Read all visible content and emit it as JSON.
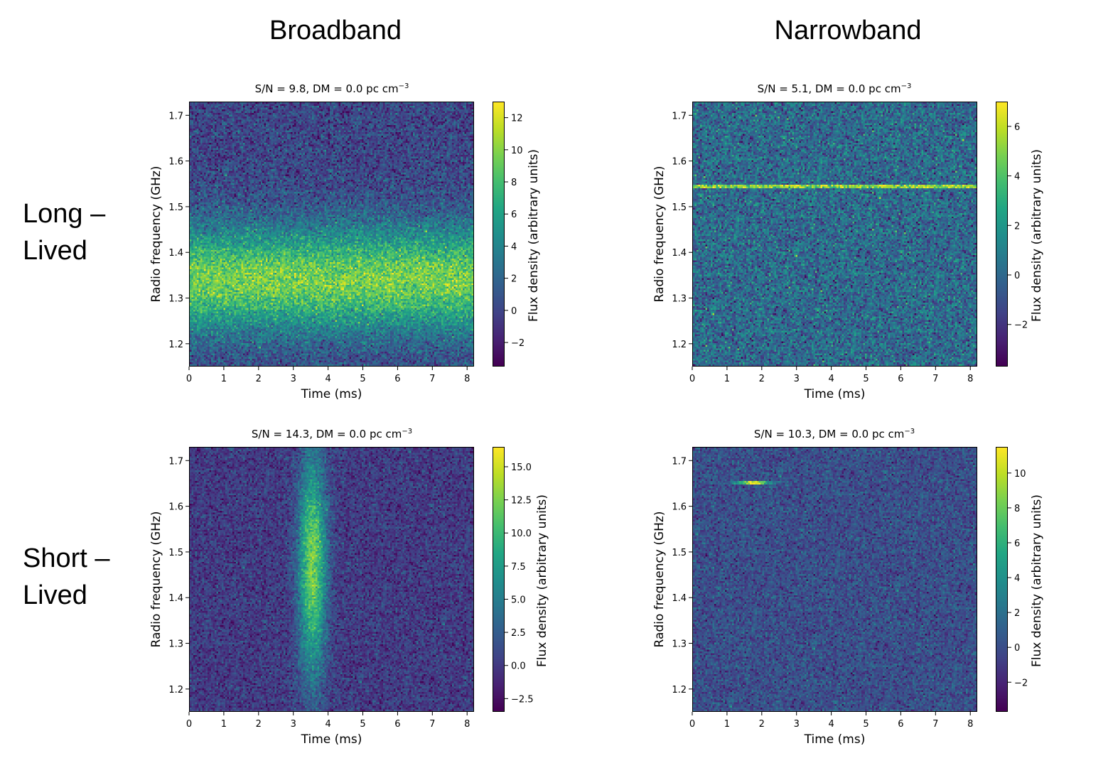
{
  "column_headers": [
    "Broadband",
    "Narrowband"
  ],
  "row_labels": [
    {
      "line1": "Long –",
      "line2": "Lived"
    },
    {
      "line1": "Short –",
      "line2": "Lived"
    }
  ],
  "chart_data": [
    {
      "type": "heatmap",
      "id": "broadband-long",
      "title": "S/N = 9.8, DM = 0.0 pc cm",
      "title_sup": "−3",
      "xlabel": "Time (ms)",
      "ylabel": "Radio frequency (GHz)",
      "colorbar_label": "Flux density (arbitrary units)",
      "xlim": [
        0,
        8.2
      ],
      "ylim": [
        1.15,
        1.73
      ],
      "xticks": [
        0,
        1,
        2,
        3,
        4,
        5,
        6,
        7,
        8
      ],
      "yticks": [
        1.2,
        1.3,
        1.4,
        1.5,
        1.6,
        1.7
      ],
      "yticklabels": [
        "1.2",
        "1.3",
        "1.4",
        "1.5",
        "1.6",
        "1.7"
      ],
      "clim": [
        -3.5,
        13
      ],
      "cticks": [
        -2,
        0,
        2,
        4,
        6,
        8,
        10,
        12
      ],
      "cticklabels": [
        "−2",
        "0",
        "2",
        "4",
        "6",
        "8",
        "10",
        "12"
      ],
      "signal": {
        "shape": "band",
        "center_freq_ghz": 1.34,
        "freq_width_ghz": 0.08,
        "peak": 9.5,
        "noise": 1.6
      },
      "colormap": "viridis"
    },
    {
      "type": "heatmap",
      "id": "narrowband-long",
      "title": "S/N = 5.1, DM = 0.0 pc cm",
      "title_sup": "−3",
      "xlabel": "Time (ms)",
      "ylabel": "Radio frequency (GHz)",
      "colorbar_label": "Flux density (arbitrary units)",
      "xlim": [
        0,
        8.2
      ],
      "ylim": [
        1.15,
        1.73
      ],
      "xticks": [
        0,
        1,
        2,
        3,
        4,
        5,
        6,
        7,
        8
      ],
      "yticks": [
        1.2,
        1.3,
        1.4,
        1.5,
        1.6,
        1.7
      ],
      "yticklabels": [
        "1.2",
        "1.3",
        "1.4",
        "1.5",
        "1.6",
        "1.7"
      ],
      "clim": [
        -3.7,
        7
      ],
      "cticks": [
        -2,
        0,
        2,
        4,
        6
      ],
      "cticklabels": [
        "−2",
        "0",
        "2",
        "4",
        "6"
      ],
      "signal": {
        "shape": "line",
        "center_freq_ghz": 1.545,
        "freq_width_ghz": 0.004,
        "peak": 5.2,
        "noise": 1.3
      },
      "colormap": "viridis"
    },
    {
      "type": "heatmap",
      "id": "broadband-short",
      "title": "S/N = 14.3, DM = 0.0 pc cm",
      "title_sup": "−3",
      "xlabel": "Time (ms)",
      "ylabel": "Radio frequency (GHz)",
      "colorbar_label": "Flux density (arbitrary units)",
      "xlim": [
        0,
        8.2
      ],
      "ylim": [
        1.15,
        1.73
      ],
      "xticks": [
        0,
        1,
        2,
        3,
        4,
        5,
        6,
        7,
        8
      ],
      "yticks": [
        1.2,
        1.3,
        1.4,
        1.5,
        1.6,
        1.7
      ],
      "yticklabels": [
        "1.2",
        "1.3",
        "1.4",
        "1.5",
        "1.6",
        "1.7"
      ],
      "clim": [
        -3.5,
        16.5
      ],
      "cticks": [
        -2.5,
        0,
        2.5,
        5,
        7.5,
        10,
        12.5,
        15
      ],
      "cticklabels": [
        "−2.5",
        "0.0",
        "2.5",
        "5.0",
        "7.5",
        "10.0",
        "12.5",
        "15.0"
      ],
      "signal": {
        "shape": "pulse",
        "center_time_ms": 3.55,
        "time_width_ms": 0.28,
        "center_freq_ghz": 1.47,
        "freq_width_ghz": 0.17,
        "peak": 12.5,
        "noise": 1.5
      },
      "colormap": "viridis"
    },
    {
      "type": "heatmap",
      "id": "narrowband-short",
      "title": "S/N = 10.3, DM = 0.0 pc cm",
      "title_sup": "−3",
      "xlabel": "Time (ms)",
      "ylabel": "Radio frequency (GHz)",
      "colorbar_label": "Flux density (arbitrary units)",
      "xlim": [
        0,
        8.2
      ],
      "ylim": [
        1.15,
        1.73
      ],
      "xticks": [
        0,
        1,
        2,
        3,
        4,
        5,
        6,
        7,
        8
      ],
      "yticks": [
        1.2,
        1.3,
        1.4,
        1.5,
        1.6,
        1.7
      ],
      "yticklabels": [
        "1.2",
        "1.3",
        "1.4",
        "1.5",
        "1.6",
        "1.7"
      ],
      "clim": [
        -3.7,
        11.5
      ],
      "cticks": [
        -2,
        0,
        2,
        4,
        6,
        8,
        10
      ],
      "cticklabels": [
        "−2",
        "0",
        "2",
        "4",
        "6",
        "8",
        "10"
      ],
      "signal": {
        "shape": "blip",
        "center_time_ms": 1.75,
        "time_width_ms": 0.35,
        "center_freq_ghz": 1.652,
        "freq_width_ghz": 0.004,
        "peak": 10.5,
        "noise": 1.2
      },
      "colormap": "viridis"
    }
  ]
}
